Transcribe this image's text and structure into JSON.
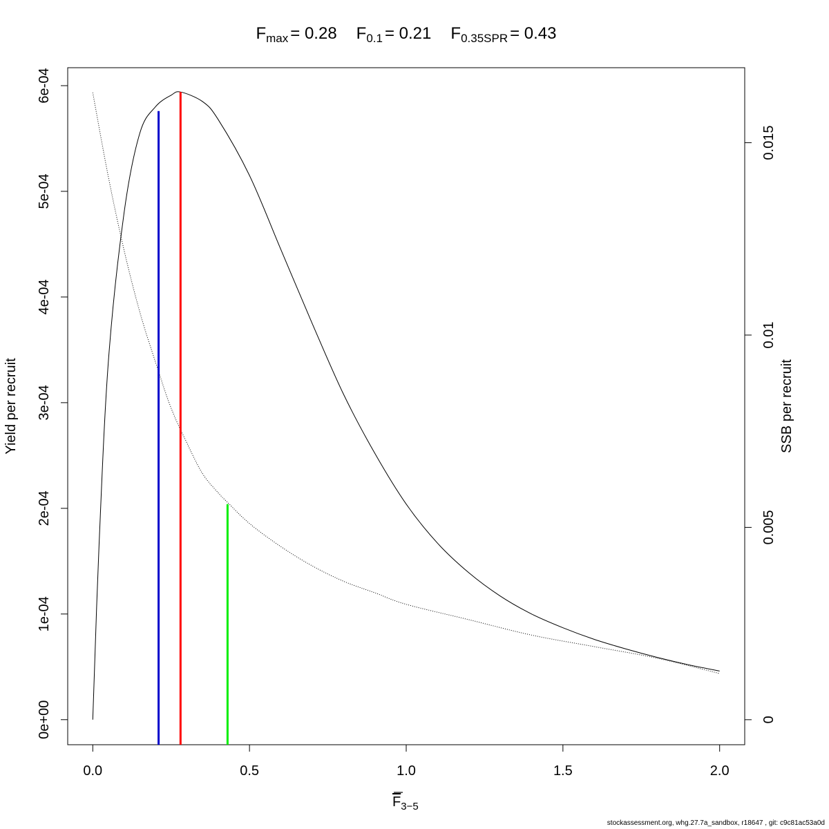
{
  "title": {
    "parts": [
      {
        "main": "F",
        "sub": "max",
        "value": "= 0.28"
      },
      {
        "main": "F",
        "sub": "0.1",
        "value": "= 0.21"
      },
      {
        "main": "F",
        "sub": "0.35SPR",
        "value": "= 0.43"
      }
    ]
  },
  "footer": "stockassessment.org, whg.27.7a_sandbox, r18647 , git: c9c81ac53a0d",
  "chart_data": {
    "type": "line",
    "xlabel": {
      "main": "F",
      "overline": true,
      "sub": "3−5"
    },
    "ylabel": "Yield per recruit",
    "y2label": "SSB per recruit",
    "xlim": [
      -0.08,
      2.08
    ],
    "ylim": [
      -2.37e-05,
      0.000617
    ],
    "y2lim": [
      -0.00065,
      0.01695
    ],
    "xticks": [
      0.0,
      0.5,
      1.0,
      1.5,
      2.0
    ],
    "xtick_labels": [
      "0.0",
      "0.5",
      "1.0",
      "1.5",
      "2.0"
    ],
    "yticks": [
      0,
      0.0001,
      0.0002,
      0.0003,
      0.0004,
      0.0005,
      0.0006
    ],
    "ytick_labels": [
      "0e+00",
      "1e-04",
      "2e-04",
      "3e-04",
      "4e-04",
      "5e-04",
      "6e-04"
    ],
    "y2ticks": [
      0,
      0.005,
      0.01,
      0.015
    ],
    "y2tick_labels": [
      "0",
      "0.005",
      "0.01",
      "0.015"
    ],
    "series": [
      {
        "axis": "left",
        "style": "solid",
        "color": "#000000",
        "x": [
          0.0,
          0.02,
          0.05,
          0.1,
          0.15,
          0.2,
          0.25,
          0.28,
          0.35,
          0.4,
          0.5,
          0.6,
          0.7,
          0.8,
          0.9,
          1.0,
          1.1,
          1.2,
          1.3,
          1.4,
          1.5,
          1.6,
          1.7,
          1.8,
          1.9,
          2.0
        ],
        "y": [
          0.0,
          0.000165,
          0.00034,
          0.00048,
          0.000555,
          0.00058,
          0.000591,
          0.000594,
          0.000585,
          0.000568,
          0.000515,
          0.000445,
          0.000375,
          0.000308,
          0.000252,
          0.000204,
          0.000167,
          0.000139,
          0.000117,
          0.0001,
          8.7e-05,
          7.6e-05,
          6.7e-05,
          5.9e-05,
          5.2e-05,
          4.6e-05
        ]
      },
      {
        "axis": "right",
        "style": "dotted",
        "color": "#000000",
        "x": [
          0.0,
          0.05,
          0.1,
          0.15,
          0.2,
          0.25,
          0.3,
          0.35,
          0.4,
          0.43,
          0.5,
          0.6,
          0.7,
          0.8,
          0.9,
          1.0,
          1.2,
          1.4,
          1.6,
          1.8,
          2.0
        ],
        "y": [
          0.0163,
          0.0141,
          0.0122,
          0.0106,
          0.0093,
          0.0081,
          0.0072,
          0.0064,
          0.0059,
          0.00565,
          0.0051,
          0.0045,
          0.004,
          0.0036,
          0.0033,
          0.003,
          0.0026,
          0.0022,
          0.0019,
          0.0016,
          0.0012
        ]
      }
    ],
    "reference_lines": [
      {
        "name": "F0.1",
        "x": 0.21,
        "top": 0.000576,
        "color": "#0000cc"
      },
      {
        "name": "Fmax",
        "x": 0.28,
        "top": 0.000594,
        "color": "#ff0000"
      },
      {
        "name": "F0.35SPR",
        "x": 0.43,
        "top": 0.000204,
        "color": "#00ee00"
      }
    ]
  }
}
